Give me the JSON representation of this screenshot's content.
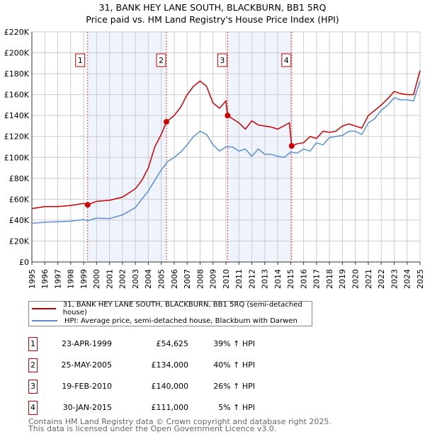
{
  "chart_data": {
    "type": "line",
    "title": "31, BANK HEY LANE SOUTH, BLACKBURN, BB1 5RQ",
    "subtitle": "Price paid vs. HM Land Registry's House Price Index (HPI)",
    "xlim": [
      1995,
      2025
    ],
    "ylim": [
      0,
      220000
    ],
    "x_ticks": [
      "1995",
      "1996",
      "1997",
      "1998",
      "1999",
      "2000",
      "2001",
      "2002",
      "2003",
      "2004",
      "2005",
      "2006",
      "2007",
      "2008",
      "2009",
      "2010",
      "2011",
      "2012",
      "2013",
      "2014",
      "2015",
      "2016",
      "2017",
      "2018",
      "2019",
      "2020",
      "2021",
      "2022",
      "2023",
      "2024",
      "2025"
    ],
    "y_ticks": [
      "£0",
      "£20K",
      "£40K",
      "£60K",
      "£80K",
      "£100K",
      "£120K",
      "£140K",
      "£160K",
      "£180K",
      "£200K",
      "£220K"
    ],
    "grid": true,
    "series": [
      {
        "name": "31, BANK HEY LANE SOUTH, BLACKBURN, BB1 5RQ (semi-detached house)",
        "color": "#cc0000",
        "x": [
          1995,
          1996,
          1997,
          1998,
          1999,
          1999.3,
          2000,
          2001,
          2002,
          2003,
          2003.5,
          2004,
          2004.5,
          2005,
          2005.4,
          2006,
          2006.5,
          2007,
          2007.5,
          2008,
          2008.5,
          2009,
          2009.5,
          2010,
          2010.13,
          2010.5,
          2011,
          2011.5,
          2012,
          2012.5,
          2013,
          2013.5,
          2014,
          2014.9,
          2015.08,
          2015.5,
          2016,
          2016.5,
          2017,
          2017.5,
          2018,
          2018.5,
          2019,
          2019.5,
          2020,
          2020.5,
          2021,
          2021.5,
          2022,
          2022.5,
          2023,
          2023.5,
          2024,
          2024.5,
          2025
        ],
        "y": [
          51000,
          53000,
          53000,
          54000,
          56000,
          54625,
          58000,
          59000,
          62000,
          70000,
          78000,
          90000,
          110000,
          122000,
          134000,
          140000,
          148000,
          160000,
          168000,
          173000,
          168000,
          152000,
          147000,
          154000,
          140000,
          137000,
          133000,
          127000,
          135000,
          131000,
          130000,
          129000,
          127000,
          133000,
          111000,
          113000,
          114000,
          120000,
          118000,
          125000,
          124000,
          125000,
          130000,
          132000,
          130000,
          128000,
          140000,
          145000,
          150000,
          156000,
          163000,
          161000,
          160000,
          160000,
          183000
        ]
      },
      {
        "name": "HPI: Average price, semi-detached house, Blackburn with Darwen",
        "color": "#5b8fd4",
        "x": [
          1995,
          1996,
          1997,
          1998,
          1999,
          1999.3,
          2000,
          2001,
          2002,
          2003,
          2004,
          2004.5,
          2005,
          2005.5,
          2006,
          2006.5,
          2007,
          2007.5,
          2008,
          2008.5,
          2009,
          2009.5,
          2010,
          2010.5,
          2011,
          2011.5,
          2012,
          2012.5,
          2013,
          2013.5,
          2014,
          2014.5,
          2015,
          2015.5,
          2016,
          2016.5,
          2017,
          2017.5,
          2018,
          2018.5,
          2019,
          2019.5,
          2020,
          2020.5,
          2021,
          2021.5,
          2022,
          2022.5,
          2023,
          2023.5,
          2024,
          2024.5,
          2025
        ],
        "y": [
          37000,
          38000,
          38500,
          39000,
          40500,
          39500,
          42000,
          41500,
          45000,
          52000,
          68000,
          78000,
          88000,
          96000,
          100000,
          105000,
          112000,
          120000,
          125000,
          122000,
          112000,
          106000,
          110000,
          110000,
          106000,
          108000,
          101000,
          108000,
          103000,
          103000,
          101000,
          100000,
          105000,
          104000,
          108000,
          106000,
          114000,
          112000,
          119000,
          120000,
          121000,
          125000,
          125000,
          122000,
          133000,
          137000,
          145000,
          150000,
          157000,
          155000,
          155000,
          154000,
          173000
        ]
      }
    ],
    "sales": [
      {
        "label": "1",
        "date": "23-APR-1999",
        "price": "£54,625",
        "hpi": "39% ↑ HPI",
        "x": 1999.31,
        "y": 54625
      },
      {
        "label": "2",
        "date": "25-MAY-2005",
        "price": "£134,000",
        "hpi": "40% ↑ HPI",
        "x": 2005.4,
        "y": 134000
      },
      {
        "label": "3",
        "date": "19-FEB-2010",
        "price": "£140,000",
        "hpi": "26% ↑ HPI",
        "x": 2010.13,
        "y": 140000
      },
      {
        "label": "4",
        "date": "30-JAN-2015",
        "price": "£111,000",
        "hpi": "5% ↑ HPI",
        "x": 2015.08,
        "y": 111000
      }
    ]
  },
  "footer": {
    "line1": "Contains HM Land Registry data © Crown copyright and database right 2025.",
    "line2": "This data is licensed under the Open Government Licence v3.0."
  }
}
